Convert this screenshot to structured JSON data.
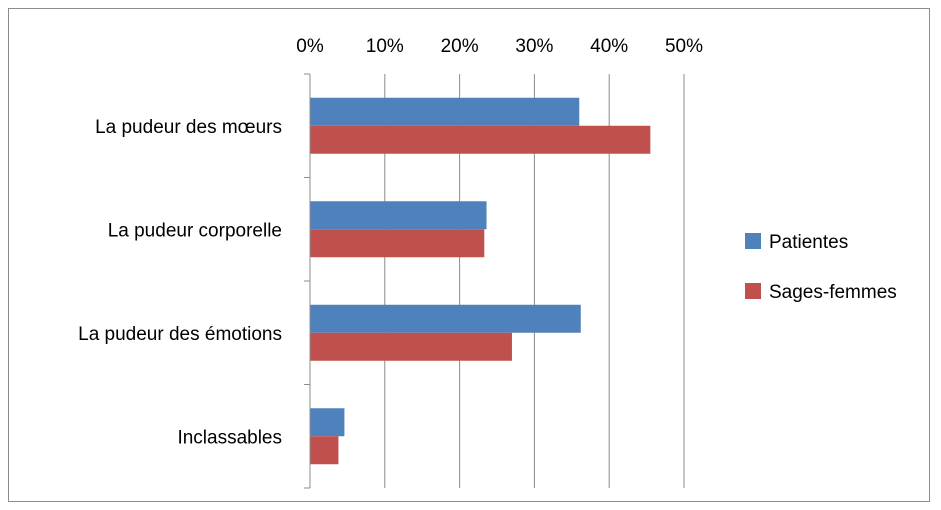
{
  "chart_data": {
    "type": "bar",
    "orientation": "horizontal",
    "categories": [
      "La pudeur des mœurs",
      "La pudeur corporelle",
      "La pudeur des émotions",
      "Inclassables"
    ],
    "series": [
      {
        "name": "Patientes",
        "color": "#4f81bd",
        "values": [
          0.36,
          0.236,
          0.362,
          0.046
        ]
      },
      {
        "name": "Sages-femmes",
        "color": "#c0504d",
        "values": [
          0.455,
          0.233,
          0.27,
          0.038
        ]
      }
    ],
    "x_ticks": [
      "0%",
      "10%",
      "20%",
      "30%",
      "40%",
      "50%"
    ],
    "xlim": [
      0,
      0.5
    ],
    "x_axis_position": "top",
    "grid": true,
    "legend_position": "right",
    "title": "",
    "xlabel": "",
    "ylabel": ""
  }
}
